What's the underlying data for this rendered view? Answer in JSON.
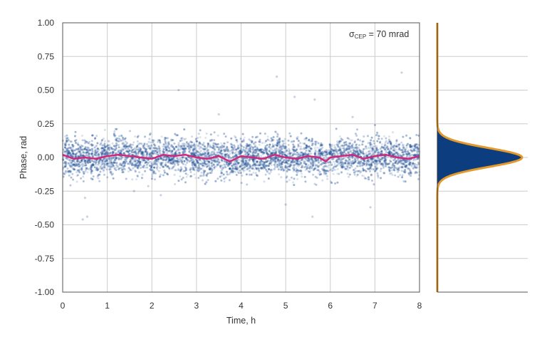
{
  "chart_data": {
    "type": "scatter",
    "xlabel": "Time, h",
    "ylabel": "Phase, rad",
    "xlim": [
      0,
      8
    ],
    "ylim": [
      -1.0,
      1.0
    ],
    "x_ticks": [
      "0",
      "1",
      "2",
      "3",
      "4",
      "5",
      "6",
      "7",
      "8"
    ],
    "y_ticks": [
      "1.00",
      "0.75",
      "0.50",
      "0.25",
      "0.00",
      "-0.25",
      "-0.50",
      "-0.75",
      "-1.00"
    ],
    "grid": true,
    "annotation": {
      "symbol": "σ",
      "subscript": "CEP",
      "rest": " = 70 mrad"
    },
    "scatter_spread_rad": 0.07,
    "outliers": [
      {
        "x": 0.45,
        "y": -0.46
      },
      {
        "x": 0.55,
        "y": -0.44
      },
      {
        "x": 0.5,
        "y": -0.3
      },
      {
        "x": 2.6,
        "y": 0.5
      },
      {
        "x": 3.5,
        "y": 0.32
      },
      {
        "x": 4.8,
        "y": 0.6
      },
      {
        "x": 5.2,
        "y": 0.45
      },
      {
        "x": 5.65,
        "y": 0.43
      },
      {
        "x": 6.5,
        "y": 0.3
      },
      {
        "x": 7.6,
        "y": 0.63
      },
      {
        "x": 5.0,
        "y": -0.35
      },
      {
        "x": 5.6,
        "y": -0.44
      },
      {
        "x": 6.9,
        "y": -0.37
      },
      {
        "x": 1.6,
        "y": -0.25
      },
      {
        "x": 2.2,
        "y": -0.28
      }
    ],
    "moving_average": {
      "x": [
        0,
        0.25,
        0.5,
        0.75,
        1,
        1.25,
        1.5,
        1.75,
        2,
        2.25,
        2.5,
        2.75,
        3,
        3.25,
        3.5,
        3.75,
        4,
        4.25,
        4.5,
        4.75,
        5,
        5.25,
        5.5,
        5.75,
        5.9,
        6,
        6.25,
        6.5,
        6.75,
        7,
        7.25,
        7.5,
        7.75,
        8
      ],
      "y": [
        0.02,
        -0.01,
        0.0,
        -0.01,
        0.01,
        0.02,
        0.01,
        0.0,
        -0.01,
        0.02,
        0.01,
        0.02,
        0.0,
        -0.01,
        0.01,
        -0.03,
        0.01,
        0.0,
        -0.01,
        0.02,
        0.0,
        -0.01,
        0.01,
        0.0,
        -0.03,
        0.0,
        0.01,
        0.02,
        -0.01,
        0.01,
        0.02,
        0.0,
        -0.01,
        0.01
      ]
    },
    "histogram": {
      "type": "area",
      "orientation": "horizontal",
      "distribution": "gaussian",
      "mean": 0.0,
      "sigma": 0.07
    },
    "colors": {
      "points": "#1f4f96",
      "moving_average": "#d6247a",
      "histogram_fill": "#0c3d7e",
      "histogram_edge": "#e39a2a",
      "grid": "#cccccc"
    }
  }
}
